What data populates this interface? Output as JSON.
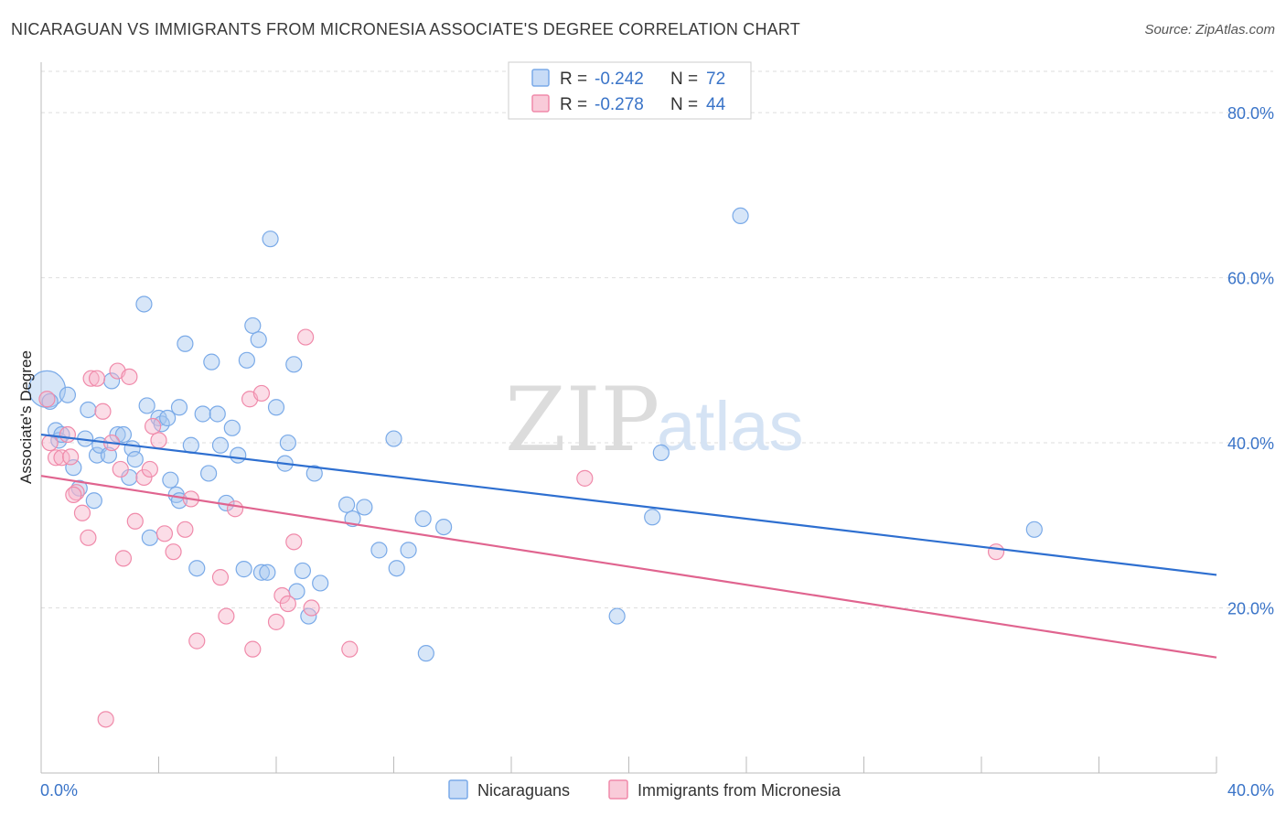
{
  "title": "NICARAGUAN VS IMMIGRANTS FROM MICRONESIA ASSOCIATE'S DEGREE CORRELATION CHART",
  "source": "Source: ZipAtlas.com",
  "watermark": {
    "zip": "ZIP",
    "atlas": "atlas"
  },
  "colors": {
    "blue": "#7aaae8",
    "blue_line": "#2e6fd0",
    "pink": "#f08aaa",
    "pink_line": "#e0648f",
    "grid": "#dcdcdc",
    "label_blue": "#3a74c8"
  },
  "legend": {
    "rows": [
      {
        "r_label": "R = ",
        "r_value": "-0.242",
        "n_label": "N = ",
        "n_value": "72"
      },
      {
        "r_label": "R = ",
        "r_value": "-0.278",
        "n_label": "N = ",
        "n_value": "44"
      }
    ]
  },
  "chart_data": {
    "type": "scatter",
    "xlabel": "",
    "ylabel": "Associate's Degree",
    "xlim": [
      0,
      40
    ],
    "ylim": [
      0,
      85
    ],
    "x_tick_labels": [
      "0.0%",
      "40.0%"
    ],
    "y_tick_labels": [
      "20.0%",
      "40.0%",
      "60.0%",
      "80.0%"
    ],
    "y_ticks": [
      20,
      40,
      60,
      80
    ],
    "grid": true,
    "series": [
      {
        "name": "Nicaraguans",
        "color": "#7aaae8",
        "trend": {
          "x": [
            0,
            40
          ],
          "y": [
            41.0,
            24.0
          ]
        },
        "points": [
          [
            0.2,
            46.5
          ],
          [
            0.3,
            45.0
          ],
          [
            0.5,
            41.5
          ],
          [
            0.6,
            40.3
          ],
          [
            0.7,
            41.0
          ],
          [
            0.9,
            45.8
          ],
          [
            1.1,
            37.0
          ],
          [
            1.3,
            34.5
          ],
          [
            1.5,
            40.5
          ],
          [
            1.6,
            44.0
          ],
          [
            1.8,
            33.0
          ],
          [
            1.9,
            38.5
          ],
          [
            2.0,
            39.7
          ],
          [
            2.3,
            38.5
          ],
          [
            2.4,
            47.5
          ],
          [
            2.6,
            41.0
          ],
          [
            2.8,
            41.0
          ],
          [
            3.0,
            35.8
          ],
          [
            3.1,
            39.3
          ],
          [
            3.2,
            38.0
          ],
          [
            3.5,
            56.8
          ],
          [
            3.6,
            44.5
          ],
          [
            3.7,
            28.5
          ],
          [
            4.0,
            43.0
          ],
          [
            4.1,
            42.3
          ],
          [
            4.3,
            43.0
          ],
          [
            4.4,
            35.5
          ],
          [
            4.6,
            33.7
          ],
          [
            4.7,
            44.3
          ],
          [
            4.9,
            52.0
          ],
          [
            5.1,
            39.7
          ],
          [
            5.3,
            24.8
          ],
          [
            5.5,
            43.5
          ],
          [
            5.7,
            36.3
          ],
          [
            5.8,
            49.8
          ],
          [
            6.0,
            43.5
          ],
          [
            6.1,
            39.7
          ],
          [
            6.3,
            32.7
          ],
          [
            6.5,
            41.8
          ],
          [
            6.7,
            38.5
          ],
          [
            6.9,
            24.7
          ],
          [
            7.0,
            50.0
          ],
          [
            7.2,
            54.2
          ],
          [
            7.4,
            52.5
          ],
          [
            7.5,
            24.3
          ],
          [
            7.7,
            24.3
          ],
          [
            7.8,
            64.7
          ],
          [
            8.0,
            44.3
          ],
          [
            8.3,
            37.5
          ],
          [
            8.4,
            40.0
          ],
          [
            8.6,
            49.5
          ],
          [
            8.7,
            22.0
          ],
          [
            8.9,
            24.5
          ],
          [
            9.1,
            19.0
          ],
          [
            9.3,
            36.3
          ],
          [
            9.5,
            23.0
          ],
          [
            10.4,
            32.5
          ],
          [
            10.6,
            30.8
          ],
          [
            11.0,
            32.2
          ],
          [
            11.5,
            27.0
          ],
          [
            12.0,
            40.5
          ],
          [
            12.1,
            24.8
          ],
          [
            12.5,
            27.0
          ],
          [
            13.0,
            30.8
          ],
          [
            13.1,
            14.5
          ],
          [
            13.7,
            29.8
          ],
          [
            19.6,
            19.0
          ],
          [
            20.8,
            31.0
          ],
          [
            21.1,
            38.8
          ],
          [
            23.8,
            67.5
          ],
          [
            33.8,
            29.5
          ],
          [
            4.7,
            33.0
          ]
        ]
      },
      {
        "name": "Immigrants from Micronesia",
        "color": "#f08aaa",
        "trend": {
          "x": [
            0,
            40
          ],
          "y": [
            36.0,
            14.0
          ]
        },
        "points": [
          [
            0.2,
            45.3
          ],
          [
            0.3,
            40.0
          ],
          [
            0.5,
            38.2
          ],
          [
            0.7,
            38.2
          ],
          [
            0.9,
            41.0
          ],
          [
            1.0,
            38.3
          ],
          [
            1.2,
            34.0
          ],
          [
            1.4,
            31.5
          ],
          [
            1.6,
            28.5
          ],
          [
            1.7,
            47.8
          ],
          [
            1.9,
            47.8
          ],
          [
            2.1,
            43.8
          ],
          [
            2.2,
            6.5
          ],
          [
            2.4,
            40.0
          ],
          [
            2.6,
            48.7
          ],
          [
            2.7,
            36.8
          ],
          [
            2.8,
            26.0
          ],
          [
            3.0,
            48.0
          ],
          [
            3.2,
            30.5
          ],
          [
            3.5,
            35.8
          ],
          [
            3.7,
            36.8
          ],
          [
            3.8,
            42.0
          ],
          [
            4.0,
            40.3
          ],
          [
            4.2,
            29.0
          ],
          [
            4.5,
            26.8
          ],
          [
            4.9,
            29.5
          ],
          [
            5.1,
            33.2
          ],
          [
            5.3,
            16.0
          ],
          [
            6.1,
            23.7
          ],
          [
            6.3,
            19.0
          ],
          [
            6.6,
            32.0
          ],
          [
            7.1,
            45.3
          ],
          [
            7.2,
            15.0
          ],
          [
            7.5,
            46.0
          ],
          [
            8.0,
            18.3
          ],
          [
            8.2,
            21.5
          ],
          [
            8.4,
            20.5
          ],
          [
            8.6,
            28.0
          ],
          [
            9.0,
            52.8
          ],
          [
            9.2,
            20.0
          ],
          [
            10.5,
            15.0
          ],
          [
            18.5,
            35.7
          ],
          [
            32.5,
            26.8
          ],
          [
            1.1,
            33.7
          ]
        ]
      }
    ]
  }
}
